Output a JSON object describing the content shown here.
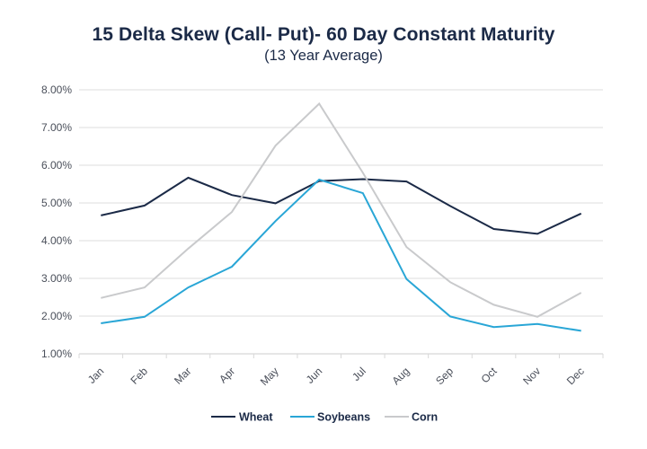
{
  "chart_data": {
    "type": "line",
    "title": "15 Delta Skew (Call- Put)- 60 Day Constant Maturity",
    "subtitle": "(13 Year Average)",
    "xlabel": "",
    "ylabel": "",
    "categories": [
      "Jan",
      "Feb",
      "Mar",
      "Apr",
      "May",
      "Jun",
      "Jul",
      "Aug",
      "Sep",
      "Oct",
      "Nov",
      "Dec"
    ],
    "ylim": [
      1.0,
      8.0
    ],
    "yticks": [
      1.0,
      2.0,
      3.0,
      4.0,
      5.0,
      6.0,
      7.0,
      8.0
    ],
    "ytick_labels": [
      "1.00%",
      "2.00%",
      "3.00%",
      "4.00%",
      "5.00%",
      "6.00%",
      "7.00%",
      "8.00%"
    ],
    "grid": true,
    "legend_position": "bottom",
    "series": [
      {
        "name": "Wheat",
        "color": "#1b2a47",
        "values": [
          4.67,
          4.93,
          5.67,
          5.21,
          4.99,
          5.58,
          5.63,
          5.57,
          4.92,
          4.31,
          4.18,
          4.72
        ]
      },
      {
        "name": "Soybeans",
        "color": "#29a6d6",
        "values": [
          1.81,
          1.98,
          2.76,
          3.31,
          4.52,
          5.62,
          5.26,
          2.98,
          1.99,
          1.71,
          1.79,
          1.61
        ]
      },
      {
        "name": "Corn",
        "color": "#c9cacc",
        "values": [
          2.48,
          2.76,
          3.79,
          4.76,
          6.52,
          7.63,
          5.8,
          3.83,
          2.9,
          2.3,
          1.98,
          2.62
        ]
      }
    ]
  }
}
